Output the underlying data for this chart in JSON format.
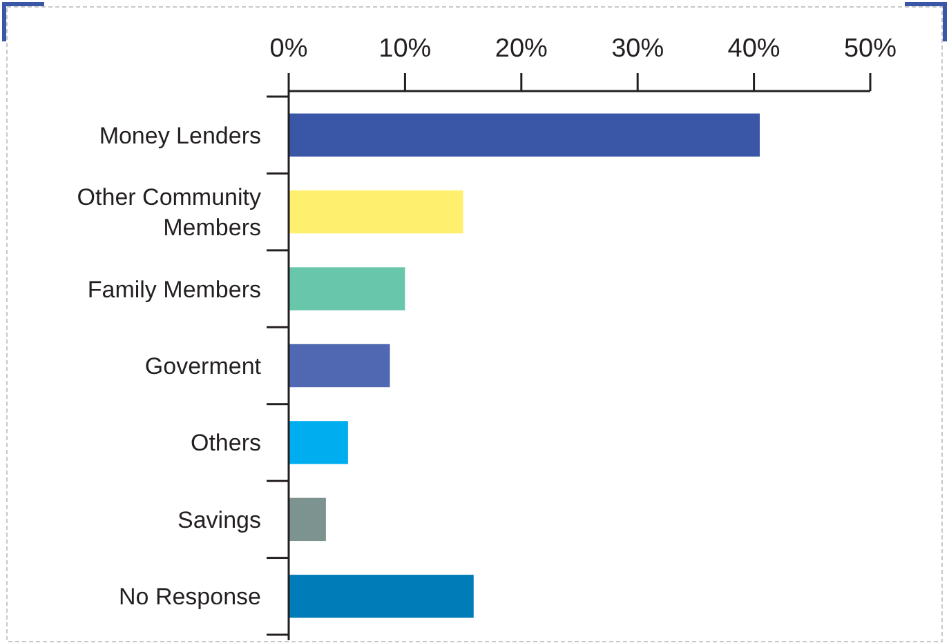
{
  "chart_data": {
    "type": "bar",
    "orientation": "horizontal",
    "categories": [
      "Money Lenders",
      "Other Community Members",
      "Family Members",
      "Goverment",
      "Others",
      "Savings",
      "No Response"
    ],
    "values": [
      40.5,
      15,
      10,
      8.7,
      5.1,
      3.2,
      15.9
    ],
    "colors": [
      "#3a56a6",
      "#fef06e",
      "#68c6aa",
      "#5067b1",
      "#00aeef",
      "#7d9390",
      "#007db8"
    ],
    "xlim": [
      0,
      50
    ],
    "xticks": [
      {
        "value": 0,
        "label": "0%"
      },
      {
        "value": 10,
        "label": "10%"
      },
      {
        "value": 20,
        "label": "20%"
      },
      {
        "value": 30,
        "label": "30%"
      },
      {
        "value": 40,
        "label": "40%"
      },
      {
        "value": 50,
        "label": "50%"
      }
    ],
    "grid": false
  }
}
